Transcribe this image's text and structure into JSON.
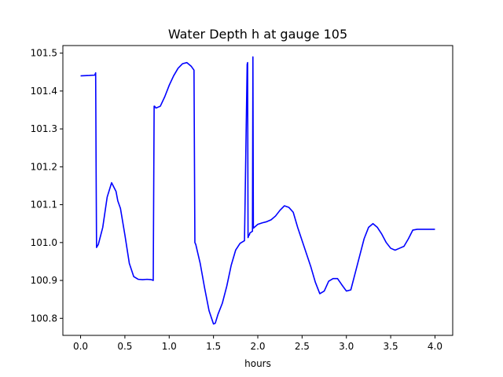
{
  "chart_data": {
    "type": "line",
    "title": "Water Depth h at gauge 105",
    "xlabel": "hours",
    "ylabel": "",
    "xlim": [
      -0.2,
      4.2
    ],
    "ylim": [
      100.755,
      101.52
    ],
    "grid": false,
    "x_ticks": [
      0.0,
      0.5,
      1.0,
      1.5,
      2.0,
      2.5,
      3.0,
      3.5,
      4.0
    ],
    "x_tick_labels": [
      "0.0",
      "0.5",
      "1.0",
      "1.5",
      "2.0",
      "2.5",
      "3.0",
      "3.5",
      "4.0"
    ],
    "y_ticks": [
      100.8,
      100.9,
      101.0,
      101.1,
      101.2,
      101.3,
      101.4,
      101.5
    ],
    "y_tick_labels": [
      "100.8",
      "100.9",
      "101.0",
      "101.1",
      "101.2",
      "101.3",
      "101.4",
      "101.5"
    ],
    "series": [
      {
        "color": "#0000ff",
        "x": [
          0.0,
          0.1,
          0.16,
          0.17,
          0.175,
          0.18,
          0.2,
          0.25,
          0.3,
          0.35,
          0.4,
          0.42,
          0.45,
          0.5,
          0.55,
          0.6,
          0.65,
          0.7,
          0.75,
          0.8,
          0.82,
          0.83,
          0.835,
          0.85,
          0.9,
          0.95,
          1.0,
          1.05,
          1.1,
          1.15,
          1.2,
          1.25,
          1.28,
          1.29,
          1.3,
          1.32,
          1.35,
          1.4,
          1.45,
          1.5,
          1.52,
          1.55,
          1.6,
          1.65,
          1.7,
          1.75,
          1.8,
          1.85,
          1.88,
          1.885,
          1.89,
          1.9,
          1.905,
          1.91,
          1.94,
          1.945,
          1.95,
          2.0,
          2.05,
          2.1,
          2.15,
          2.2,
          2.25,
          2.3,
          2.35,
          2.4,
          2.45,
          2.5,
          2.55,
          2.6,
          2.65,
          2.7,
          2.75,
          2.8,
          2.85,
          2.9,
          2.95,
          3.0,
          3.05,
          3.1,
          3.15,
          3.2,
          3.25,
          3.3,
          3.35,
          3.4,
          3.45,
          3.5,
          3.55,
          3.6,
          3.65,
          3.7,
          3.75,
          3.8,
          3.85,
          3.9,
          3.95,
          4.0
        ],
        "y": [
          101.44,
          101.441,
          101.442,
          101.448,
          101.2,
          100.987,
          100.995,
          101.04,
          101.12,
          101.158,
          101.135,
          101.11,
          101.09,
          101.02,
          100.945,
          100.91,
          100.903,
          100.902,
          100.903,
          100.902,
          100.9,
          101.36,
          101.36,
          101.355,
          101.36,
          101.385,
          101.415,
          101.44,
          101.46,
          101.472,
          101.475,
          101.465,
          101.455,
          101.0,
          100.995,
          100.975,
          100.945,
          100.88,
          100.82,
          100.785,
          100.787,
          100.81,
          100.84,
          100.885,
          100.94,
          100.98,
          100.998,
          101.005,
          101.47,
          101.475,
          101.013,
          101.02,
          101.02,
          101.025,
          101.03,
          101.49,
          101.038,
          101.048,
          101.052,
          101.055,
          101.06,
          101.07,
          101.085,
          101.097,
          101.093,
          101.08,
          101.04,
          101.005,
          100.97,
          100.935,
          100.895,
          100.865,
          100.872,
          100.898,
          100.905,
          100.905,
          100.888,
          100.872,
          100.875,
          100.92,
          100.965,
          101.01,
          101.04,
          101.05,
          101.04,
          101.022,
          101.0,
          100.985,
          100.98,
          100.985,
          100.99,
          101.01,
          101.033,
          101.035,
          101.035,
          101.035,
          101.035,
          101.035
        ]
      }
    ]
  }
}
